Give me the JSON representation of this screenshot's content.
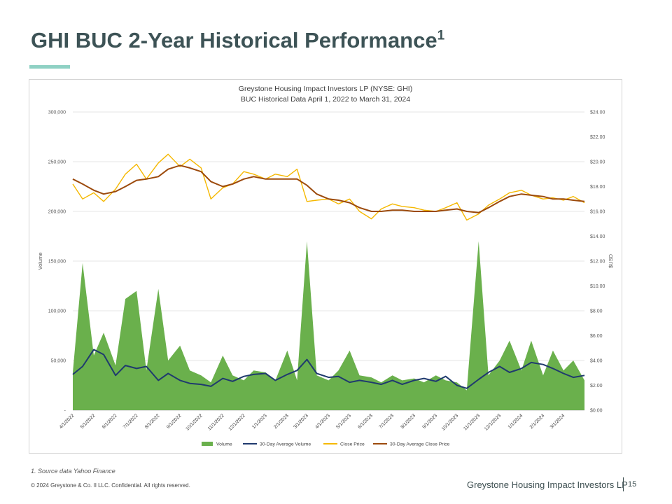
{
  "page": {
    "title": "GHI BUC 2-Year Historical Performance",
    "title_sup": "1",
    "footnote": "1.  Source data Yahoo Finance",
    "copyright": "© 2024 Greystone & Co. II LLC. Confidential. All rights reserved.",
    "company": "Greystone Housing Impact Investors LP",
    "page_number": "15"
  },
  "colors": {
    "volume": "#6ab04c",
    "avg_volume": "#1f3a6e",
    "close_price": "#f5b800",
    "avg_close_price": "#9c4a0c",
    "title_accent": "#8fd1c4"
  },
  "chart_data": {
    "type": "area",
    "title": "Greystone Housing Impact Investors LP (NYSE: GHI)",
    "subtitle": "BUC Historical Data April 1, 2022 to March 31, 2024",
    "ylabel_left": "Volume",
    "ylabel_right": "$USD",
    "ylim_left": [
      0,
      300000
    ],
    "ylim_right": [
      0,
      24
    ],
    "yticks_left": [
      "-",
      "50,000",
      "100,000",
      "150,000",
      "200,000",
      "250,000",
      "300,000"
    ],
    "yticks_right": [
      "$0.00",
      "$2.00",
      "$4.00",
      "$6.00",
      "$8.00",
      "$10.00",
      "$12.00",
      "$14.00",
      "$16.00",
      "$18.00",
      "$20.00",
      "$22.00",
      "$24.00"
    ],
    "x_range": [
      "2022-04-01",
      "2024-03-31"
    ],
    "xticks": [
      "4/1/2022",
      "5/1/2022",
      "6/1/2022",
      "7/1/2022",
      "8/1/2022",
      "9/1/2022",
      "10/1/2022",
      "11/1/2022",
      "12/1/2022",
      "1/1/2023",
      "2/1/2023",
      "3/1/2023",
      "4/1/2023",
      "5/1/2023",
      "6/1/2023",
      "7/1/2023",
      "8/1/2023",
      "9/1/2023",
      "10/1/2023",
      "11/1/2023",
      "12/1/2023",
      "1/1/2024",
      "2/1/2024",
      "3/1/2024"
    ],
    "grid": true,
    "legend": "bottom",
    "series": [
      {
        "name": "Volume",
        "type": "area",
        "axis": "left",
        "x": [
          "2022-04-01",
          "2022-04-15",
          "2022-05-01",
          "2022-05-15",
          "2022-06-01",
          "2022-06-15",
          "2022-07-01",
          "2022-07-15",
          "2022-08-01",
          "2022-08-15",
          "2022-09-01",
          "2022-09-15",
          "2022-10-01",
          "2022-10-15",
          "2022-11-01",
          "2022-11-15",
          "2022-12-01",
          "2022-12-15",
          "2023-01-01",
          "2023-01-15",
          "2023-02-01",
          "2023-02-15",
          "2023-03-01",
          "2023-03-15",
          "2023-04-01",
          "2023-04-15",
          "2023-05-01",
          "2023-05-15",
          "2023-06-01",
          "2023-06-15",
          "2023-07-01",
          "2023-07-15",
          "2023-08-01",
          "2023-08-15",
          "2023-09-01",
          "2023-09-15",
          "2023-10-01",
          "2023-10-15",
          "2023-11-01",
          "2023-11-15",
          "2023-12-01",
          "2023-12-15",
          "2024-01-01",
          "2024-01-15",
          "2024-02-01",
          "2024-02-15",
          "2024-03-01",
          "2024-03-15",
          "2024-03-31"
        ],
        "values": [
          38000,
          148000,
          55000,
          78000,
          45000,
          112000,
          120000,
          40000,
          122000,
          50000,
          65000,
          40000,
          35000,
          28000,
          55000,
          35000,
          30000,
          40000,
          38000,
          30000,
          60000,
          30000,
          170000,
          35000,
          30000,
          40000,
          60000,
          35000,
          33000,
          28000,
          35000,
          30000,
          32000,
          28000,
          35000,
          30000,
          28000,
          20000,
          170000,
          35000,
          50000,
          70000,
          40000,
          70000,
          35000,
          60000,
          40000,
          50000,
          30000
        ]
      },
      {
        "name": "30-Day Average Volume",
        "type": "line",
        "axis": "left",
        "x": [
          "2022-04-01",
          "2022-04-15",
          "2022-05-01",
          "2022-05-15",
          "2022-06-01",
          "2022-06-15",
          "2022-07-01",
          "2022-07-15",
          "2022-08-01",
          "2022-08-15",
          "2022-09-01",
          "2022-09-15",
          "2022-10-01",
          "2022-10-15",
          "2022-11-01",
          "2022-11-15",
          "2022-12-01",
          "2022-12-15",
          "2023-01-01",
          "2023-01-15",
          "2023-02-01",
          "2023-02-15",
          "2023-03-01",
          "2023-03-15",
          "2023-04-01",
          "2023-04-15",
          "2023-05-01",
          "2023-05-15",
          "2023-06-01",
          "2023-06-15",
          "2023-07-01",
          "2023-07-15",
          "2023-08-01",
          "2023-08-15",
          "2023-09-01",
          "2023-09-15",
          "2023-10-01",
          "2023-10-15",
          "2023-11-01",
          "2023-11-15",
          "2023-12-01",
          "2023-12-15",
          "2024-01-01",
          "2024-01-15",
          "2024-02-01",
          "2024-02-15",
          "2024-03-01",
          "2024-03-15",
          "2024-03-31"
        ],
        "values": [
          36000,
          44000,
          61000,
          56000,
          35000,
          45000,
          42000,
          44000,
          30000,
          37000,
          30000,
          27000,
          26000,
          24000,
          32000,
          29000,
          34000,
          36000,
          37000,
          30000,
          36000,
          40000,
          51000,
          37000,
          33000,
          34000,
          28000,
          30000,
          28000,
          26000,
          30000,
          26000,
          30000,
          32000,
          29000,
          34000,
          25000,
          22000,
          31000,
          38000,
          44000,
          38000,
          42000,
          48000,
          46000,
          42000,
          37000,
          33000,
          35000
        ]
      },
      {
        "name": "Close Price",
        "type": "line",
        "axis": "right",
        "x": [
          "2022-04-01",
          "2022-04-15",
          "2022-05-01",
          "2022-05-15",
          "2022-06-01",
          "2022-06-15",
          "2022-07-01",
          "2022-07-15",
          "2022-08-01",
          "2022-08-15",
          "2022-09-01",
          "2022-09-15",
          "2022-10-01",
          "2022-10-15",
          "2022-11-01",
          "2022-11-15",
          "2022-12-01",
          "2022-12-15",
          "2023-01-01",
          "2023-01-15",
          "2023-02-01",
          "2023-02-15",
          "2023-03-01",
          "2023-03-15",
          "2023-04-01",
          "2023-04-15",
          "2023-05-01",
          "2023-05-15",
          "2023-06-01",
          "2023-06-15",
          "2023-07-01",
          "2023-07-15",
          "2023-08-01",
          "2023-08-15",
          "2023-09-01",
          "2023-09-15",
          "2023-10-01",
          "2023-10-15",
          "2023-11-01",
          "2023-11-15",
          "2023-12-01",
          "2023-12-15",
          "2024-01-01",
          "2024-01-15",
          "2024-02-01",
          "2024-02-15",
          "2024-03-01",
          "2024-03-15",
          "2024-03-31"
        ],
        "values": [
          18.2,
          17.0,
          17.5,
          16.8,
          17.8,
          19.0,
          19.8,
          18.6,
          19.9,
          20.6,
          19.6,
          20.2,
          19.5,
          17.0,
          17.9,
          18.2,
          19.2,
          19.0,
          18.6,
          19.0,
          18.8,
          19.4,
          16.8,
          16.9,
          17.0,
          16.6,
          17.0,
          16.0,
          15.4,
          16.2,
          16.6,
          16.4,
          16.3,
          16.1,
          16.0,
          16.3,
          16.7,
          15.3,
          15.8,
          16.5,
          17.0,
          17.5,
          17.7,
          17.3,
          17.0,
          17.1,
          16.9,
          17.2,
          16.7
        ]
      },
      {
        "name": "30-Day Average Close Price",
        "type": "line",
        "axis": "right",
        "x": [
          "2022-04-01",
          "2022-04-15",
          "2022-05-01",
          "2022-05-15",
          "2022-06-01",
          "2022-06-15",
          "2022-07-01",
          "2022-07-15",
          "2022-08-01",
          "2022-08-15",
          "2022-09-01",
          "2022-09-15",
          "2022-10-01",
          "2022-10-15",
          "2022-11-01",
          "2022-11-15",
          "2022-12-01",
          "2022-12-15",
          "2023-01-01",
          "2023-01-15",
          "2023-02-01",
          "2023-02-15",
          "2023-03-01",
          "2023-03-15",
          "2023-04-01",
          "2023-04-15",
          "2023-05-01",
          "2023-05-15",
          "2023-06-01",
          "2023-06-15",
          "2023-07-01",
          "2023-07-15",
          "2023-08-01",
          "2023-08-15",
          "2023-09-01",
          "2023-09-15",
          "2023-10-01",
          "2023-10-15",
          "2023-11-01",
          "2023-11-15",
          "2023-12-01",
          "2023-12-15",
          "2024-01-01",
          "2024-01-15",
          "2024-02-01",
          "2024-02-15",
          "2024-03-01",
          "2024-03-15",
          "2024-03-31"
        ],
        "values": [
          18.6,
          18.2,
          17.7,
          17.4,
          17.6,
          18.0,
          18.5,
          18.6,
          18.8,
          19.4,
          19.7,
          19.5,
          19.2,
          18.4,
          18.0,
          18.2,
          18.6,
          18.8,
          18.6,
          18.6,
          18.6,
          18.6,
          18.1,
          17.4,
          17.0,
          16.9,
          16.7,
          16.3,
          16.0,
          16.0,
          16.1,
          16.1,
          16.0,
          16.0,
          16.0,
          16.1,
          16.2,
          16.0,
          15.9,
          16.3,
          16.8,
          17.2,
          17.4,
          17.3,
          17.2,
          17.0,
          17.0,
          16.9,
          16.8
        ]
      }
    ]
  }
}
